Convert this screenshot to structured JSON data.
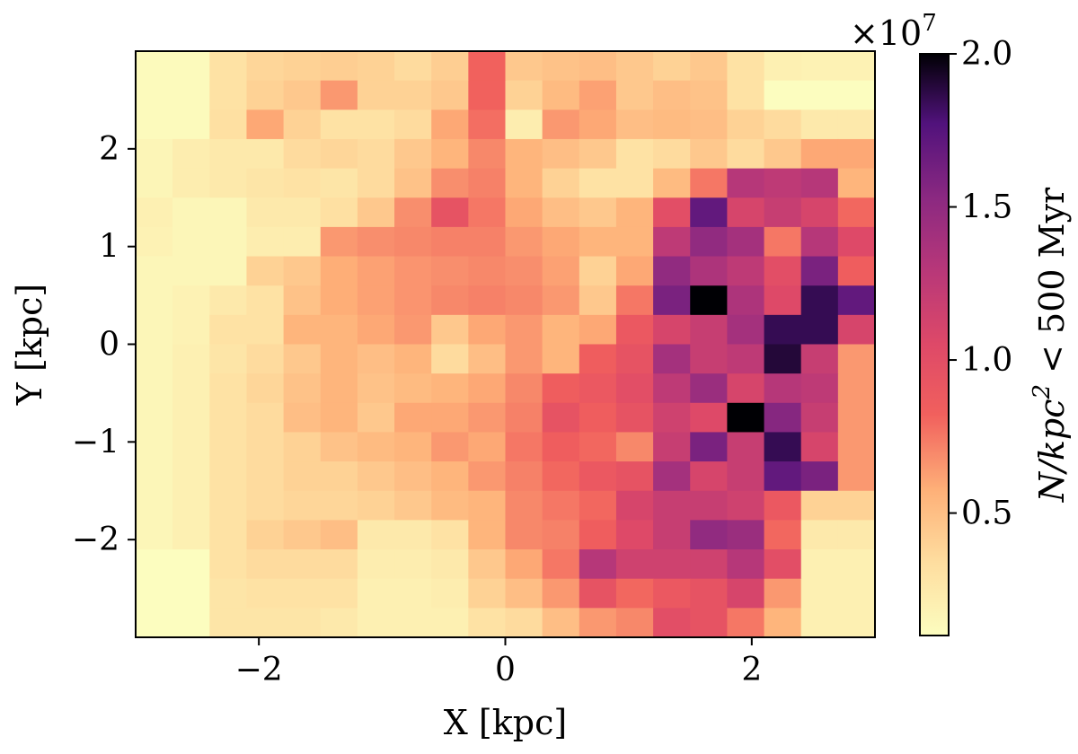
{
  "chart_data": {
    "type": "heatmap",
    "title": "",
    "xlabel": "X [kpc]",
    "ylabel": "Y [kpc]",
    "xlim": [
      -3.0,
      3.0
    ],
    "ylim": [
      -3.0,
      3.0
    ],
    "x_ticks": [
      -2,
      0,
      2
    ],
    "y_ticks": [
      -2,
      -1,
      0,
      1,
      2
    ],
    "x_tick_labels": [
      "−2",
      "0",
      "2"
    ],
    "y_tick_labels": [
      "−2",
      "−1",
      "0",
      "1",
      "2"
    ],
    "colormap": "magma_r",
    "colorbar": {
      "label": "N/kpc² < 500 Myr",
      "label_parts": {
        "italic": "N/kpc",
        "sup": "2",
        "rest": " < 500 Myr"
      },
      "multiplier": "×10",
      "multiplier_exp": "7",
      "range": [
        0.1,
        2.0
      ],
      "ticks": [
        0.5,
        1.0,
        1.5,
        2.0
      ],
      "tick_labels": [
        "0.5",
        "1.0",
        "1.5",
        "2.0"
      ]
    },
    "grid": false,
    "x": [
      -2.85,
      -2.55,
      -2.25,
      -1.95,
      -1.65,
      -1.35,
      -1.05,
      -0.75,
      -0.45,
      -0.15,
      0.15,
      0.45,
      0.75,
      1.05,
      1.35,
      1.65,
      1.95,
      2.25,
      2.55,
      2.85
    ],
    "y": [
      2.85,
      2.55,
      2.25,
      1.95,
      1.65,
      1.35,
      1.05,
      0.75,
      0.45,
      0.15,
      -0.15,
      -0.45,
      -0.75,
      -1.05,
      -1.35,
      -1.65,
      -1.95,
      -2.25,
      -2.55,
      -2.85
    ],
    "values_1e7": [
      [
        0.12,
        0.12,
        0.3,
        0.38,
        0.4,
        0.42,
        0.4,
        0.35,
        0.42,
        0.82,
        0.45,
        0.48,
        0.5,
        0.45,
        0.4,
        0.45,
        0.3,
        0.2,
        0.18,
        0.18
      ],
      [
        0.12,
        0.12,
        0.3,
        0.4,
        0.45,
        0.65,
        0.4,
        0.4,
        0.45,
        0.82,
        0.4,
        0.52,
        0.62,
        0.45,
        0.5,
        0.48,
        0.3,
        0.1,
        0.1,
        0.1
      ],
      [
        0.12,
        0.12,
        0.32,
        0.6,
        0.4,
        0.3,
        0.3,
        0.35,
        0.6,
        0.78,
        0.22,
        0.65,
        0.6,
        0.5,
        0.52,
        0.5,
        0.4,
        0.35,
        0.25,
        0.25
      ],
      [
        0.16,
        0.22,
        0.25,
        0.25,
        0.35,
        0.38,
        0.35,
        0.45,
        0.55,
        0.7,
        0.55,
        0.5,
        0.45,
        0.3,
        0.35,
        0.45,
        0.35,
        0.45,
        0.6,
        0.6
      ],
      [
        0.16,
        0.22,
        0.25,
        0.28,
        0.3,
        0.28,
        0.35,
        0.48,
        0.68,
        0.72,
        0.55,
        0.4,
        0.3,
        0.3,
        0.52,
        0.75,
        1.3,
        1.25,
        1.3,
        0.55
      ],
      [
        0.2,
        0.15,
        0.15,
        0.25,
        0.25,
        0.32,
        0.45,
        0.68,
        0.95,
        0.75,
        0.6,
        0.5,
        0.45,
        0.55,
        1.0,
        1.7,
        1.1,
        1.2,
        1.1,
        0.8
      ],
      [
        0.18,
        0.15,
        0.15,
        0.22,
        0.22,
        0.65,
        0.68,
        0.7,
        0.72,
        0.72,
        0.65,
        0.6,
        0.55,
        0.55,
        1.25,
        1.5,
        1.4,
        0.75,
        1.3,
        1.05
      ],
      [
        0.15,
        0.15,
        0.15,
        0.4,
        0.45,
        0.58,
        0.62,
        0.66,
        0.68,
        0.7,
        0.68,
        0.62,
        0.4,
        0.6,
        1.5,
        1.35,
        1.25,
        1.0,
        1.6,
        0.85
      ],
      [
        0.15,
        0.18,
        0.25,
        0.3,
        0.48,
        0.58,
        0.62,
        0.66,
        0.7,
        0.72,
        0.7,
        0.65,
        0.45,
        0.75,
        1.6,
        2.0,
        1.35,
        1.05,
        1.85,
        1.7
      ],
      [
        0.15,
        0.18,
        0.3,
        0.3,
        0.55,
        0.55,
        0.6,
        0.65,
        0.45,
        0.6,
        0.65,
        0.55,
        0.6,
        0.9,
        1.1,
        1.2,
        1.4,
        1.85,
        1.85,
        1.1
      ],
      [
        0.15,
        0.2,
        0.28,
        0.35,
        0.45,
        0.55,
        0.5,
        0.55,
        0.35,
        0.5,
        0.65,
        0.55,
        0.85,
        0.95,
        1.4,
        1.2,
        1.25,
        1.9,
        1.2,
        0.65
      ],
      [
        0.15,
        0.2,
        0.3,
        0.38,
        0.48,
        0.55,
        0.48,
        0.52,
        0.55,
        0.6,
        0.7,
        0.85,
        0.9,
        1.0,
        1.25,
        1.45,
        1.1,
        1.3,
        1.25,
        0.65
      ],
      [
        0.15,
        0.2,
        0.3,
        0.35,
        0.5,
        0.55,
        0.45,
        0.6,
        0.6,
        0.65,
        0.72,
        0.95,
        0.85,
        0.95,
        1.15,
        1.05,
        2.0,
        1.55,
        1.2,
        0.65
      ],
      [
        0.15,
        0.2,
        0.3,
        0.35,
        0.4,
        0.48,
        0.52,
        0.55,
        0.65,
        0.6,
        0.75,
        0.85,
        0.8,
        0.7,
        1.2,
        1.6,
        1.2,
        1.85,
        1.1,
        0.65
      ],
      [
        0.15,
        0.2,
        0.3,
        0.35,
        0.4,
        0.4,
        0.45,
        0.5,
        0.55,
        0.65,
        0.72,
        0.8,
        0.9,
        0.95,
        1.4,
        1.1,
        1.2,
        1.7,
        1.6,
        0.65
      ],
      [
        0.15,
        0.2,
        0.3,
        0.35,
        0.38,
        0.38,
        0.4,
        0.45,
        0.52,
        0.55,
        0.7,
        0.75,
        0.8,
        1.1,
        1.2,
        1.2,
        1.15,
        0.9,
        0.4,
        0.4
      ],
      [
        0.15,
        0.2,
        0.3,
        0.4,
        0.45,
        0.5,
        0.25,
        0.25,
        0.3,
        0.55,
        0.7,
        0.72,
        0.85,
        1.05,
        1.2,
        1.5,
        1.45,
        0.8,
        0.25,
        0.25
      ],
      [
        0.1,
        0.1,
        0.3,
        0.35,
        0.35,
        0.35,
        0.22,
        0.22,
        0.25,
        0.45,
        0.6,
        0.75,
        1.3,
        1.15,
        1.15,
        1.15,
        1.3,
        1.0,
        0.2,
        0.2
      ],
      [
        0.1,
        0.1,
        0.28,
        0.3,
        0.3,
        0.3,
        0.2,
        0.2,
        0.22,
        0.4,
        0.5,
        0.65,
        0.95,
        0.8,
        0.9,
        0.95,
        1.1,
        0.65,
        0.2,
        0.2
      ],
      [
        0.1,
        0.1,
        0.28,
        0.28,
        0.28,
        0.25,
        0.2,
        0.2,
        0.2,
        0.3,
        0.35,
        0.5,
        0.65,
        0.7,
        1.0,
        0.95,
        0.75,
        0.55,
        0.2,
        0.2
      ]
    ]
  }
}
